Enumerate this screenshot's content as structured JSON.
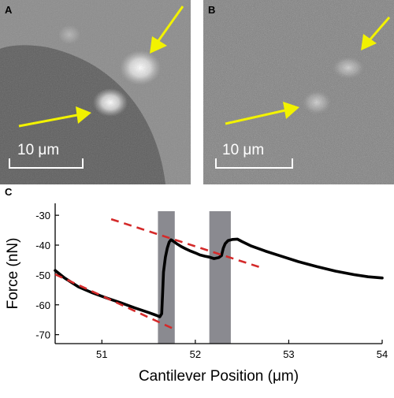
{
  "panels": {
    "a": {
      "letter": "A",
      "scale_bar": "10 μm"
    },
    "b": {
      "letter": "B",
      "scale_bar": "10 μm"
    },
    "c": {
      "letter": "C"
    }
  },
  "colors": {
    "arrow": "#f2f200",
    "force_curve": "#000000",
    "fit_lines": "#d42a2a",
    "shaded_band": "#8a8a90"
  },
  "chart_data": {
    "type": "line",
    "xlabel": "Cantilever Position (μm)",
    "ylabel": "Force (nN)",
    "xlim": [
      50.5,
      54
    ],
    "ylim": [
      -73,
      -26
    ],
    "xticks": [
      51,
      52,
      53,
      54
    ],
    "yticks": [
      -30,
      -40,
      -50,
      -60,
      -70
    ],
    "grid": false,
    "shaded_regions": [
      {
        "x0": 51.6,
        "x1": 51.78
      },
      {
        "x0": 52.15,
        "x1": 52.38
      }
    ],
    "series": [
      {
        "points": [
          [
            50.5,
            -48.5
          ],
          [
            50.6,
            -51
          ],
          [
            50.75,
            -54
          ],
          [
            50.9,
            -56
          ],
          [
            51.05,
            -57.7
          ],
          [
            51.2,
            -59.3
          ],
          [
            51.35,
            -61
          ],
          [
            51.5,
            -62.6
          ],
          [
            51.58,
            -63.5
          ],
          [
            51.62,
            -64
          ],
          [
            51.64,
            -63
          ],
          [
            51.65,
            -56
          ],
          [
            51.66,
            -49
          ],
          [
            51.68,
            -44
          ],
          [
            51.7,
            -41
          ],
          [
            51.72,
            -39
          ],
          [
            51.74,
            -38.2
          ],
          [
            51.76,
            -38.6
          ],
          [
            51.8,
            -39.5
          ],
          [
            51.85,
            -40.5
          ],
          [
            51.9,
            -41.3
          ],
          [
            51.95,
            -42
          ],
          [
            52.0,
            -42.6
          ],
          [
            52.05,
            -43.3
          ],
          [
            52.1,
            -43.7
          ],
          [
            52.15,
            -44
          ],
          [
            52.2,
            -44.5
          ],
          [
            52.25,
            -44.2
          ],
          [
            52.28,
            -43.5
          ],
          [
            52.3,
            -41
          ],
          [
            52.32,
            -39.5
          ],
          [
            52.35,
            -38.5
          ],
          [
            52.4,
            -38.1
          ],
          [
            52.45,
            -38
          ],
          [
            52.5,
            -38.8
          ],
          [
            52.6,
            -40.3
          ],
          [
            52.75,
            -42
          ],
          [
            52.9,
            -43.5
          ],
          [
            53.1,
            -45.5
          ],
          [
            53.3,
            -47.2
          ],
          [
            53.5,
            -48.7
          ],
          [
            53.7,
            -49.9
          ],
          [
            53.85,
            -50.6
          ],
          [
            54.0,
            -51
          ]
        ]
      },
      {
        "style": "dashed",
        "points": [
          [
            50.5,
            -49.8
          ],
          [
            51.8,
            -68.5
          ]
        ]
      },
      {
        "style": "dashed",
        "points": [
          [
            51.1,
            -31.3
          ],
          [
            52.7,
            -47.5
          ]
        ]
      }
    ]
  }
}
